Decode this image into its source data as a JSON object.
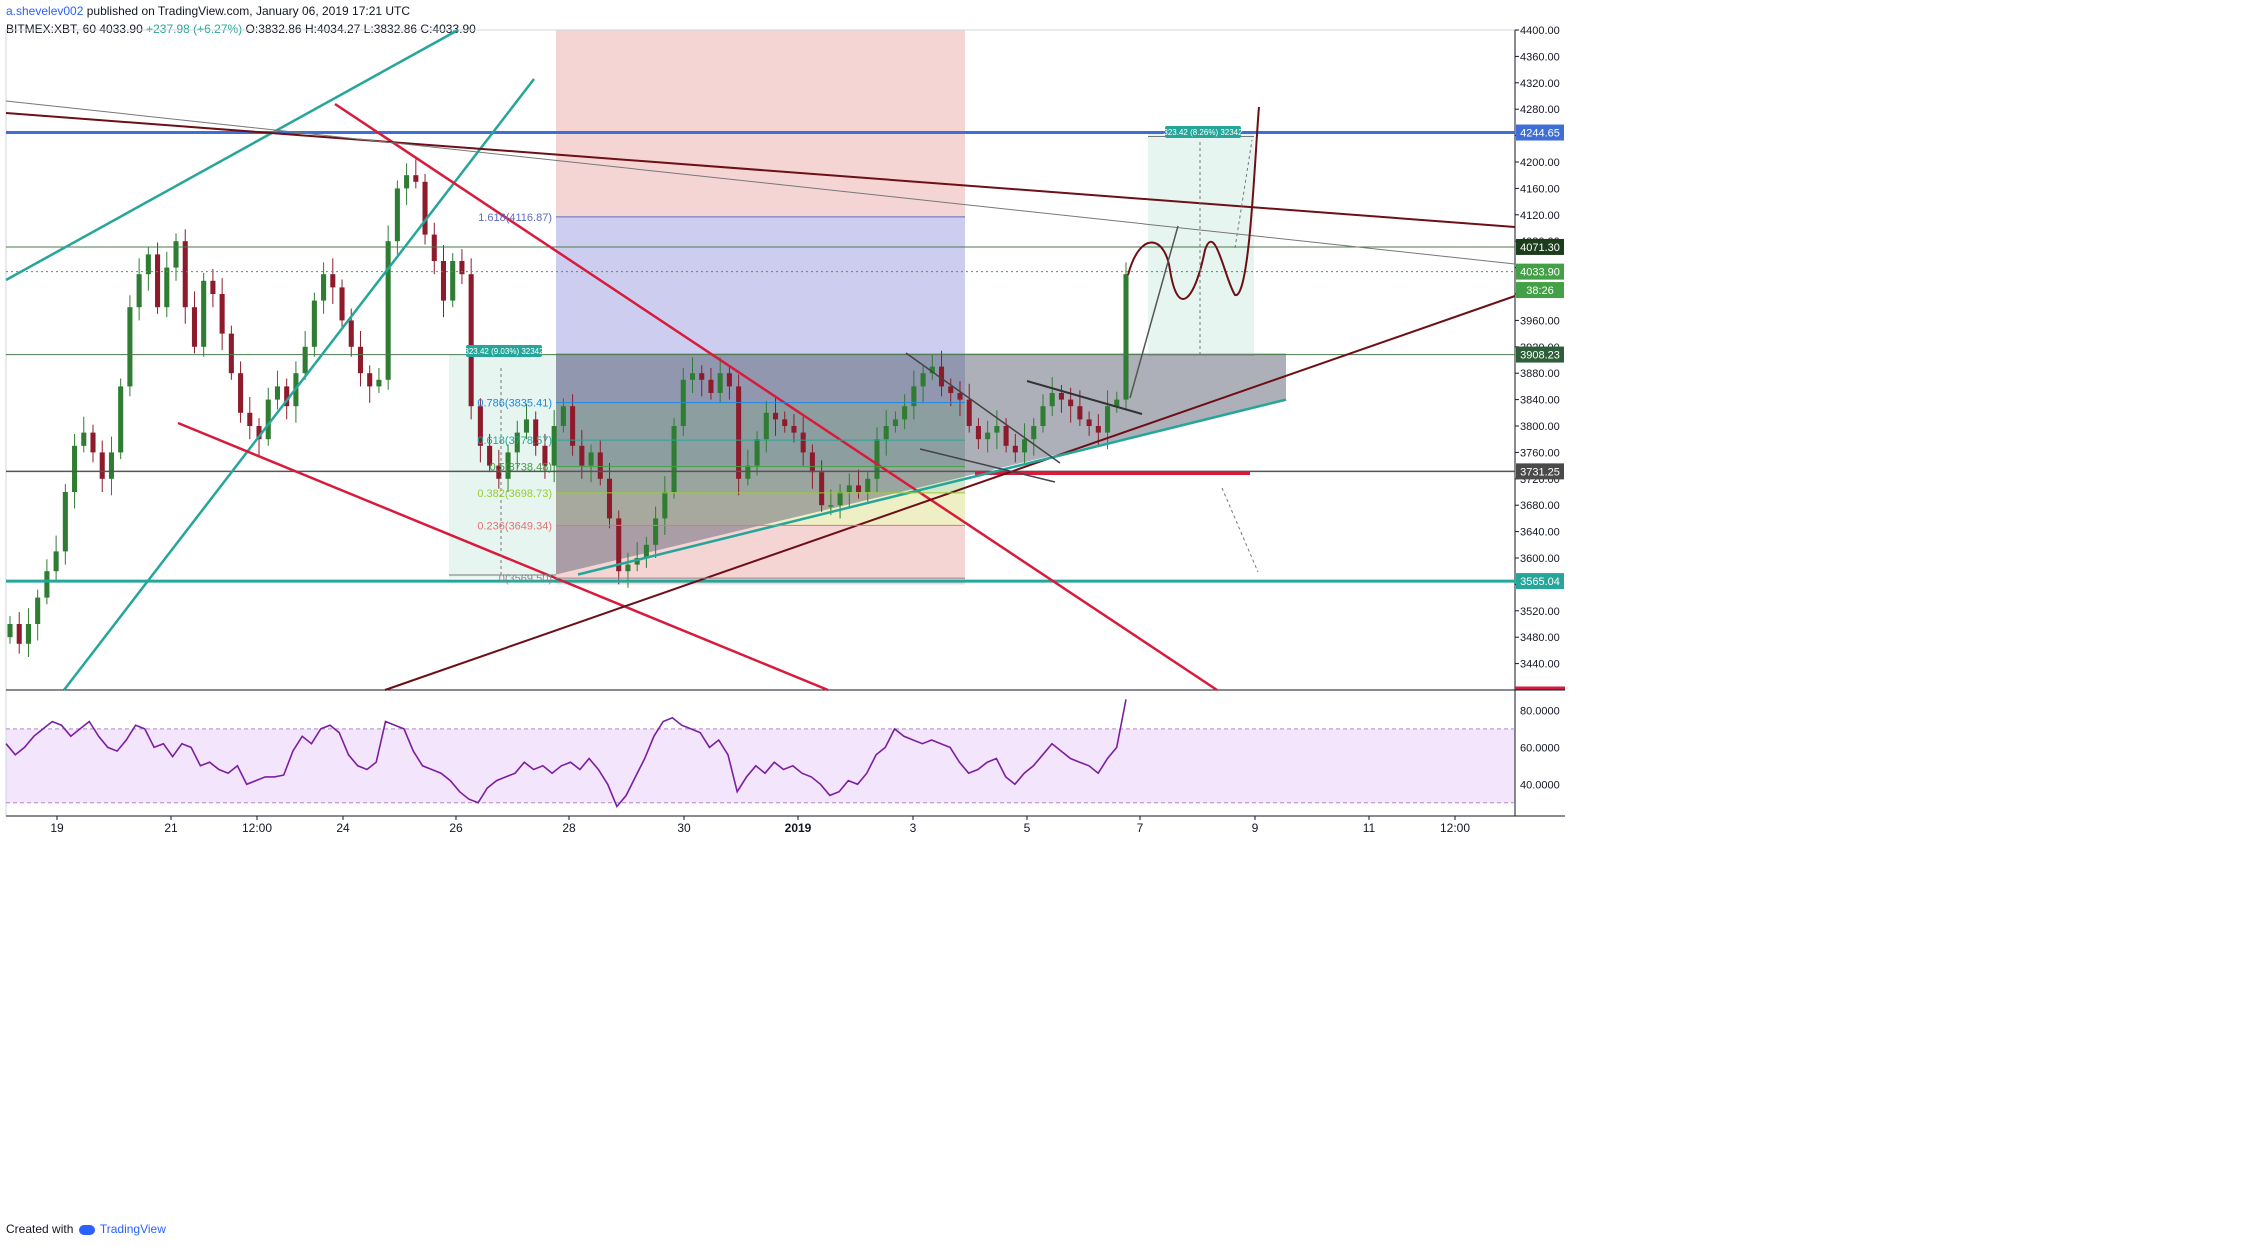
{
  "header": {
    "author": "a.shevelev002",
    "published": "published on TradingView.com, January 06, 2019 17:21 UTC",
    "symbol": "BITMEX:XBT, 60",
    "last": "4033.90",
    "change": "+237.98 (+6.27%)",
    "ohlc_o_label": "O:",
    "ohlc_o": "3832.86",
    "ohlc_h_label": "H:",
    "ohlc_h": "4034.27",
    "ohlc_l_label": "L:",
    "ohlc_l": "3832.86",
    "ohlc_c_label": "C:",
    "ohlc_c": "4033.90"
  },
  "footer": {
    "created_with": "Created with",
    "brand": "TradingView"
  },
  "colors": {
    "up": "#26a69a",
    "down": "#7b1f2e",
    "candle_up": "#2e7d32",
    "candle_down": "#8e1b2c",
    "blue_line": "#3f6fd6",
    "teal": "#26a69a",
    "red": "#d81b3c",
    "maroon": "#6d0f16",
    "rsi": "#7b1fa2",
    "rsi_band": "#f3e5fb",
    "gray_box": "#6b6f80"
  },
  "chart_data": [
    {
      "type": "candlestick",
      "title": "",
      "ylim": [
        3400,
        4400
      ],
      "yticks": [
        "4400.00",
        "4360.00",
        "4320.00",
        "4280.00",
        "4240.00",
        "4200.00",
        "4160.00",
        "4120.00",
        "4080.00",
        "4040.00",
        "4000.00",
        "3960.00",
        "3920.00",
        "3880.00",
        "3840.00",
        "3800.00",
        "3760.00",
        "3720.00",
        "3680.00",
        "3640.00",
        "3600.00",
        "3560.00",
        "3520.00",
        "3480.00",
        "3440.00"
      ],
      "xticks": [
        "19",
        "21",
        "12:00",
        "24",
        "26",
        "28",
        "30",
        "2019",
        "3",
        "5",
        "7",
        "9",
        "11",
        "12:00"
      ],
      "price_labels": [
        {
          "text": "4244.65",
          "value": 4244.65,
          "style": "blue"
        },
        {
          "text": "4071.30",
          "value": 4071.3,
          "style": "dark"
        },
        {
          "text": "4033.90",
          "value": 4033.9,
          "style": "green"
        },
        {
          "text": "38:26",
          "value": 4006.0,
          "style": "green"
        },
        {
          "text": "3908.23",
          "value": 3908.23,
          "style": "darkgreen"
        },
        {
          "text": "3731.25",
          "value": 3731.25,
          "style": "gray"
        },
        {
          "text": "3565.04",
          "value": 3565.04,
          "style": "teal"
        }
      ],
      "fib_levels": [
        {
          "text": "1.618(4116.87)",
          "value": 4116.87
        },
        {
          "text": "0.786(3835.41)",
          "value": 3835.41
        },
        {
          "text": "0.618(3778.57)",
          "value": 3778.57
        },
        {
          "text": "0.5(3738.48)",
          "value": 3738.48
        },
        {
          "text": "0.382(3698.73)",
          "value": 3698.73
        },
        {
          "text": "0.236(3649.34)",
          "value": 3649.34
        },
        {
          "text": "0(3569.50)",
          "value": 3569.5
        }
      ],
      "measure_labels": [
        "323.42 (9.03%) 32342",
        "323.42 (8.26%) 32342"
      ],
      "close": [
        3500,
        3470,
        3500,
        3540,
        3580,
        3610,
        3700,
        3770,
        3790,
        3760,
        3720,
        3760,
        3860,
        3980,
        4030,
        4060,
        3980,
        4040,
        4080,
        3980,
        3920,
        4020,
        4000,
        3940,
        3880,
        3820,
        3800,
        3780,
        3840,
        3860,
        3830,
        3880,
        3920,
        3990,
        4030,
        4010,
        3960,
        3920,
        3880,
        3860,
        3870,
        4080,
        4160,
        4180,
        4170,
        4090,
        4050,
        3990,
        4050,
        4030,
        3830,
        3770,
        3740,
        3720,
        3760,
        3790,
        3810,
        3770,
        3740,
        3800,
        3830,
        3770,
        3740,
        3760,
        3720,
        3660,
        3580,
        3590,
        3600,
        3620,
        3660,
        3700,
        3800,
        3870,
        3880,
        3870,
        3850,
        3880,
        3860,
        3720,
        3740,
        3780,
        3820,
        3810,
        3800,
        3790,
        3760,
        3730,
        3680,
        3680,
        3700,
        3710,
        3700,
        3720,
        3780,
        3800,
        3810,
        3830,
        3860,
        3880,
        3890,
        3860,
        3850,
        3840,
        3800,
        3780,
        3790,
        3800,
        3770,
        3760,
        3780,
        3800,
        3830,
        3850,
        3840,
        3830,
        3810,
        3800,
        3790,
        3830,
        3840,
        4030
      ],
      "rsi": {
        "ylim": [
          25,
          90
        ],
        "yticks": [
          "80.0000",
          "60.0000",
          "40.0000"
        ],
        "bands": [
          70,
          30
        ],
        "values": [
          62,
          56,
          60,
          66,
          70,
          74,
          72,
          66,
          70,
          74,
          66,
          60,
          58,
          64,
          72,
          70,
          60,
          62,
          55,
          62,
          60,
          50,
          52,
          48,
          46,
          50,
          40,
          42,
          44,
          44,
          45,
          58,
          66,
          62,
          70,
          72,
          68,
          56,
          50,
          48,
          52,
          74,
          72,
          70,
          58,
          50,
          48,
          46,
          42,
          36,
          32,
          30,
          38,
          42,
          44,
          46,
          52,
          48,
          50,
          46,
          50,
          52,
          48,
          54,
          48,
          40,
          28,
          34,
          44,
          54,
          66,
          74,
          76,
          72,
          70,
          68,
          60,
          64,
          56,
          36,
          44,
          50,
          46,
          52,
          48,
          50,
          46,
          44,
          40,
          34,
          36,
          42,
          40,
          46,
          56,
          60,
          70,
          66,
          64,
          62,
          64,
          62,
          60,
          52,
          46,
          48,
          52,
          54,
          44,
          40,
          46,
          50,
          56,
          62,
          58,
          54,
          52,
          50,
          46,
          54,
          60,
          86
        ]
      }
    }
  ]
}
